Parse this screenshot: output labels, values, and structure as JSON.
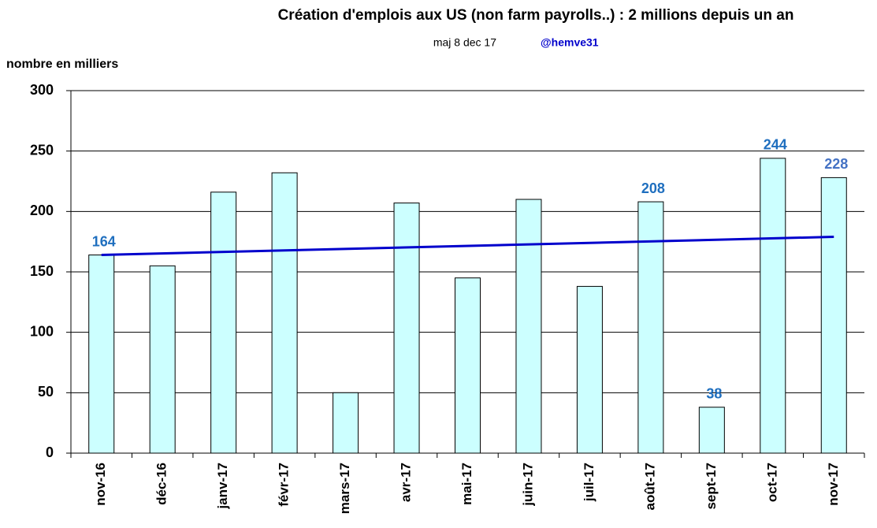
{
  "chart_data": {
    "type": "bar",
    "title": "Création d'emplois aux US (non farm payrolls..) : 2 millions depuis un an",
    "subtitle": "maj 8 dec 17",
    "credit": "@hemve31",
    "y_label": "nombre en milliers",
    "categories": [
      "nov-16",
      "déc-16",
      "janv-17",
      "févr-17",
      "mars-17",
      "avr-17",
      "mai-17",
      "juin-17",
      "juil-17",
      "août-17",
      "sept-17",
      "oct-17",
      "nov-17"
    ],
    "values": [
      164,
      155,
      216,
      232,
      50,
      207,
      145,
      210,
      138,
      208,
      38,
      244,
      228
    ],
    "color": "#ccffff",
    "labeled": [
      0,
      9,
      10,
      11,
      12
    ],
    "label_colors": [
      "#1f6fbf",
      "#1f6fbf",
      "#1f6fbf",
      "#1f6fbf",
      "#4472c4"
    ],
    "trend": {
      "values": [
        164,
        179
      ],
      "color": "#0000cc"
    },
    "ylim": [
      0,
      300
    ],
    "yticks": [
      0,
      50,
      100,
      150,
      200,
      250,
      300
    ],
    "grid": true
  }
}
